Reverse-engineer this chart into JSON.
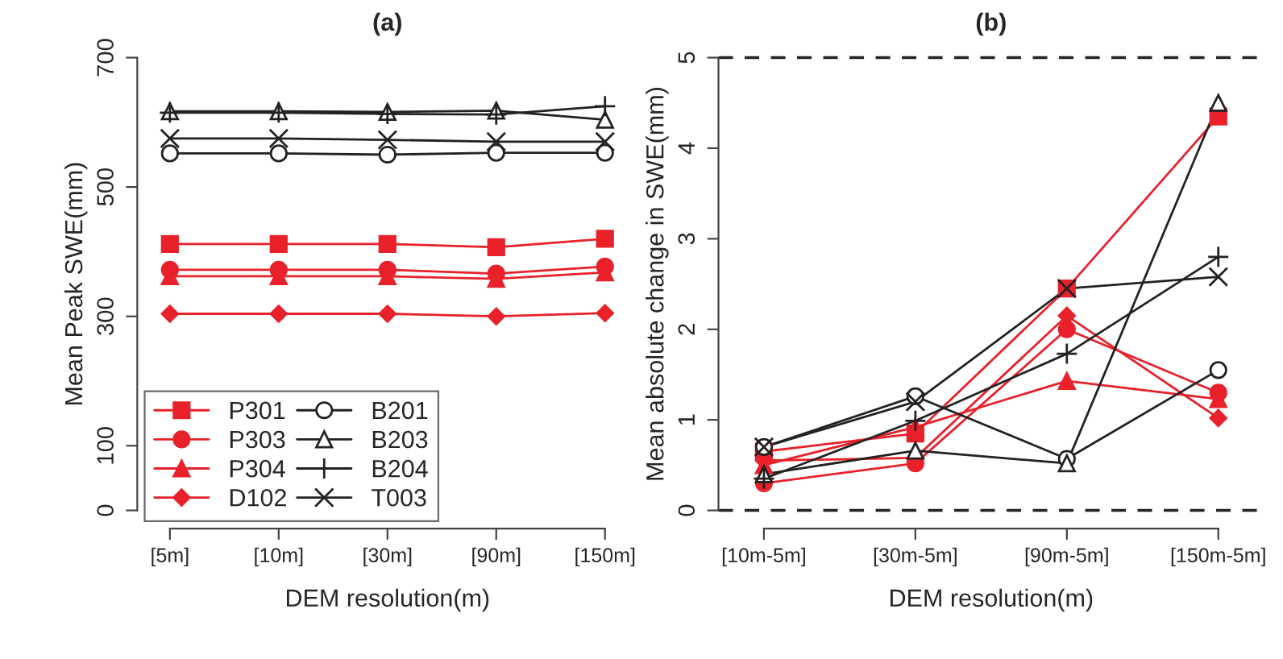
{
  "chart_data": [
    {
      "type": "line",
      "title": "(a)",
      "xlabel": "DEM resolution(m)",
      "ylabel": "Mean Peak SWE(mm)",
      "categories": [
        "[5m]",
        "[10m]",
        "[30m]",
        "[90m]",
        "[150m]"
      ],
      "ylim": [
        0,
        700
      ],
      "yticks": [
        0,
        100,
        300,
        500,
        700
      ],
      "grid": false,
      "legend": "bottom left",
      "series": [
        {
          "name": "P301",
          "color": "#e8212b",
          "marker": "square",
          "values": [
            412,
            412,
            412,
            407,
            420
          ]
        },
        {
          "name": "P303",
          "color": "#e8212b",
          "marker": "circle",
          "values": [
            372,
            372,
            372,
            366,
            377
          ]
        },
        {
          "name": "P304",
          "color": "#e8212b",
          "marker": "triangle",
          "values": [
            362,
            362,
            362,
            358,
            368
          ]
        },
        {
          "name": "D102",
          "color": "#e8212b",
          "marker": "diamond",
          "values": [
            304,
            304,
            304,
            300,
            305
          ]
        },
        {
          "name": "B201",
          "color": "#222222",
          "marker": "circle",
          "values": [
            552,
            552,
            550,
            553,
            553
          ]
        },
        {
          "name": "B203",
          "color": "#222222",
          "marker": "triangle",
          "values": [
            617,
            617,
            616,
            618,
            604
          ]
        },
        {
          "name": "B204",
          "color": "#222222",
          "marker": "plus",
          "values": [
            615,
            615,
            613,
            612,
            625
          ]
        },
        {
          "name": "T003",
          "color": "#222222",
          "marker": "cross",
          "values": [
            575,
            575,
            573,
            570,
            570
          ]
        }
      ]
    },
    {
      "type": "line",
      "title": "(b)",
      "xlabel": "DEM resolution(m)",
      "ylabel": "Mean absolute change in SWE(mm)",
      "categories": [
        "[10m-5m]",
        "[30m-5m]",
        "[90m-5m]",
        "[150m-5m]"
      ],
      "ylim": [
        0,
        5
      ],
      "yticks": [
        0,
        1,
        2,
        3,
        4,
        5
      ],
      "grid": false,
      "ref_lines": [
        {
          "axis": "y",
          "value": 0,
          "color": "#222222",
          "line_style": "dashed"
        },
        {
          "axis": "y",
          "value": 5,
          "color": "#222222",
          "line_style": "dashed"
        }
      ],
      "series": [
        {
          "color": "#e8212b",
          "marker": "square",
          "values": [
            0.65,
            0.85,
            2.45,
            4.35
          ]
        },
        {
          "color": "#e8212b",
          "marker": "circle",
          "values": [
            0.3,
            0.52,
            2.0,
            1.3
          ]
        },
        {
          "color": "#e8212b",
          "marker": "triangle",
          "values": [
            0.5,
            0.92,
            1.43,
            1.23
          ]
        },
        {
          "color": "#e8212b",
          "marker": "diamond",
          "values": [
            0.55,
            0.58,
            2.15,
            1.02
          ]
        },
        {
          "color": "#222222",
          "marker": "circle",
          "values": [
            0.7,
            1.26,
            0.57,
            1.55
          ]
        },
        {
          "color": "#222222",
          "marker": "triangle",
          "values": [
            0.4,
            0.66,
            0.52,
            4.5
          ]
        },
        {
          "color": "#222222",
          "marker": "plus",
          "values": [
            0.35,
            0.99,
            1.73,
            2.8
          ]
        },
        {
          "color": "#222222",
          "marker": "cross",
          "values": [
            0.7,
            1.2,
            2.45,
            2.58
          ]
        }
      ]
    }
  ]
}
